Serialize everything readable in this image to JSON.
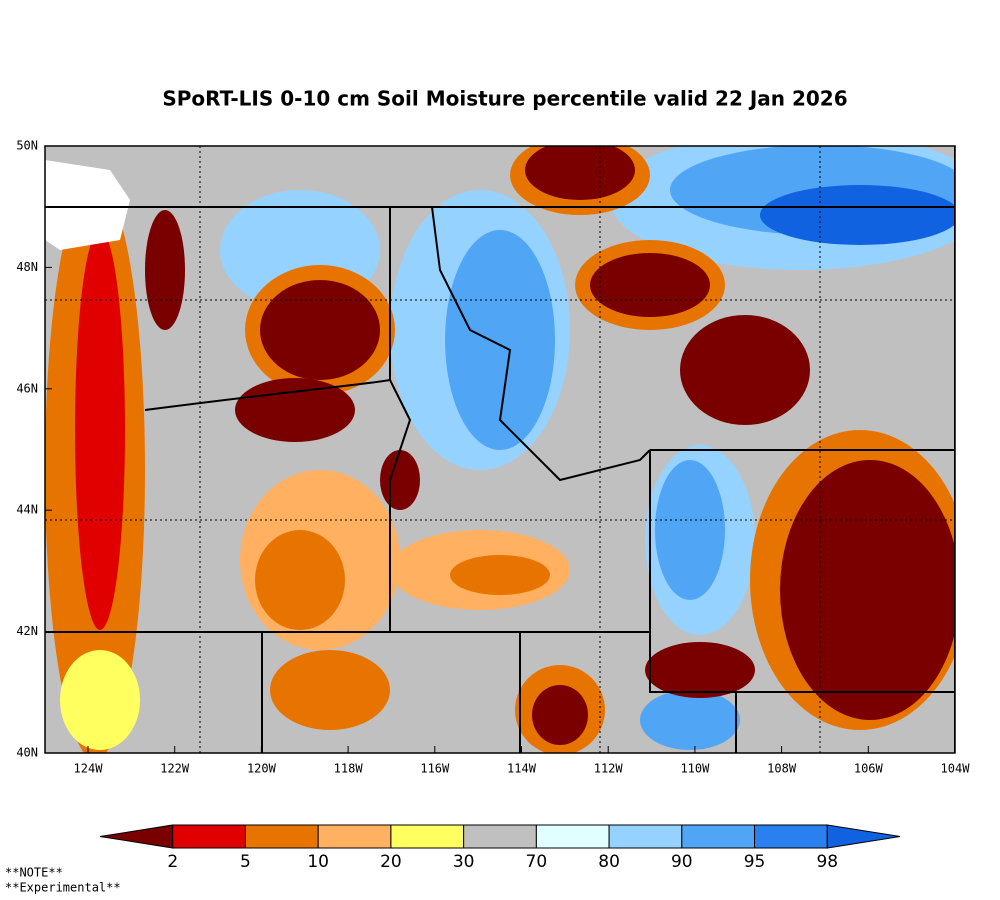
{
  "title": "SPoRT-LIS 0-10 cm Soil Moisture percentile valid 22 Jan 2026",
  "map": {
    "lat_labels": [
      "50N",
      "48N",
      "46N",
      "44N",
      "42N",
      "40N"
    ],
    "lon_labels": [
      "124W",
      "122W",
      "120W",
      "118W",
      "116W",
      "114W",
      "112W",
      "110W",
      "108W",
      "106W",
      "104W"
    ]
  },
  "colorbar": {
    "ticks": [
      2,
      5,
      10,
      20,
      30,
      70,
      80,
      90,
      95,
      98
    ],
    "colors": [
      "#7a0000",
      "#e00000",
      "#e87400",
      "#ffb060",
      "#ffff60",
      "#c0c0c0",
      "#e0ffff",
      "#96d2ff",
      "#50a5f5",
      "#2a80ee",
      "#1062e0"
    ]
  },
  "notes": [
    "**NOTE**",
    "**Experimental**"
  ]
}
